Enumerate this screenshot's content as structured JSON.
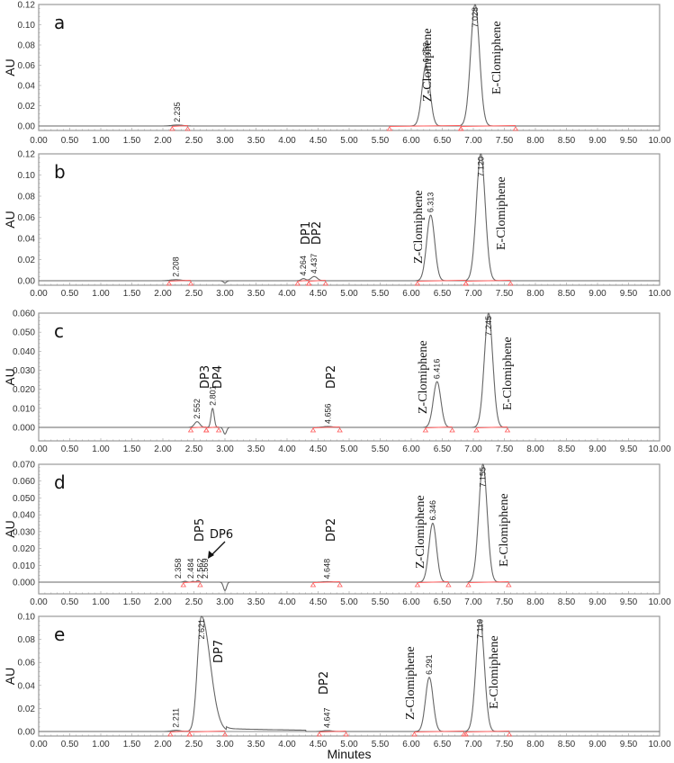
{
  "chart_data": [
    {
      "type": "line",
      "panel": "a",
      "title": "",
      "xlabel": "",
      "ylabel": "AU",
      "xlim": [
        0,
        10
      ],
      "ylim": [
        -0.003,
        0.12
      ],
      "x_ticks": [
        "0.00",
        "0.50",
        "1.00",
        "1.50",
        "2.00",
        "2.50",
        "3.00",
        "3.50",
        "4.00",
        "4.50",
        "5.00",
        "5.50",
        "6.00",
        "6.50",
        "7.00",
        "7.50",
        "8.00",
        "8.50",
        "9.00",
        "9.50",
        "10.00"
      ],
      "y_ticks": [
        "0.00",
        "0.02",
        "0.04",
        "0.06",
        "0.08",
        "0.10",
        "0.12"
      ],
      "peaks": [
        {
          "rt": "2.235",
          "x": 2.235,
          "height": 0.001,
          "width": 0.12
        },
        {
          "rt": "6.238",
          "x": 6.238,
          "height": 0.06,
          "width": 0.09,
          "label": "Z-Clomiphene"
        },
        {
          "rt": "7.028",
          "x": 7.028,
          "height": 0.12,
          "width": 0.1,
          "label": "E-Clomiphene"
        }
      ],
      "dips": [],
      "integration_bounds": [
        [
          2.15,
          2.4
        ],
        [
          5.65,
          6.8
        ],
        [
          6.8,
          7.68
        ]
      ]
    },
    {
      "type": "line",
      "panel": "b",
      "ylabel": "AU",
      "xlim": [
        0,
        10
      ],
      "ylim": [
        -0.003,
        0.12
      ],
      "x_ticks": [
        "0.00",
        "0.50",
        "1.00",
        "1.50",
        "2.00",
        "2.50",
        "3.00",
        "3.50",
        "4.00",
        "4.50",
        "5.00",
        "5.50",
        "6.00",
        "6.50",
        "7.00",
        "7.50",
        "8.00",
        "8.50",
        "9.00",
        "9.50",
        "10.00"
      ],
      "y_ticks": [
        "0.00",
        "0.02",
        "0.04",
        "0.06",
        "0.08",
        "0.10",
        "0.12"
      ],
      "peaks": [
        {
          "rt": "2.208",
          "x": 2.208,
          "height": 0.001,
          "width": 0.12
        },
        {
          "rt": "4.264",
          "x": 4.264,
          "height": 0.002,
          "width": 0.05,
          "label": "DP1"
        },
        {
          "rt": "4.437",
          "x": 4.437,
          "height": 0.004,
          "width": 0.07,
          "label": "DP2"
        },
        {
          "rt": "6.313",
          "x": 6.313,
          "height": 0.062,
          "width": 0.09,
          "label": "Z-Clomiphene"
        },
        {
          "rt": "7.120",
          "x": 7.12,
          "height": 0.12,
          "width": 0.1,
          "label": "E-Clomiphene"
        }
      ],
      "dips": [
        {
          "x": 3.0,
          "depth": 0.002
        }
      ],
      "integration_bounds": [
        [
          2.1,
          2.45
        ],
        [
          4.17,
          4.35
        ],
        [
          4.35,
          4.62
        ],
        [
          6.1,
          6.88
        ],
        [
          6.88,
          7.6
        ]
      ]
    },
    {
      "type": "line",
      "panel": "c",
      "ylabel": "AU",
      "xlim": [
        0,
        10
      ],
      "ylim": [
        -0.007,
        0.06
      ],
      "x_ticks": [
        "0.00",
        "0.50",
        "1.00",
        "1.50",
        "2.00",
        "2.50",
        "3.00",
        "3.50",
        "4.00",
        "4.50",
        "5.00",
        "5.50",
        "6.00",
        "6.50",
        "7.00",
        "7.50",
        "8.00",
        "8.50",
        "9.00",
        "9.50",
        "10.00"
      ],
      "y_ticks": [
        "0.000",
        "0.010",
        "0.020",
        "0.030",
        "0.040",
        "0.050",
        "0.060"
      ],
      "peaks": [
        {
          "rt": "2.552",
          "x": 2.552,
          "height": 0.003,
          "width": 0.06,
          "label": "DP3"
        },
        {
          "rt": "2.801",
          "x": 2.801,
          "height": 0.01,
          "width": 0.035,
          "label": "DP4"
        },
        {
          "rt": "4.656",
          "x": 4.656,
          "height": 0.0005,
          "width": 0.1,
          "label": "DP2"
        },
        {
          "rt": "6.416",
          "x": 6.416,
          "height": 0.024,
          "width": 0.085,
          "label": "Z-Clomiphene"
        },
        {
          "rt": "7.245",
          "x": 7.245,
          "height": 0.06,
          "width": 0.095,
          "label": "E-Clomiphene"
        }
      ],
      "dips": [
        {
          "x": 3.0,
          "depth": 0.0035
        }
      ],
      "integration_bounds": [
        [
          2.45,
          2.7
        ],
        [
          2.7,
          2.9
        ],
        [
          4.42,
          4.85
        ],
        [
          6.23,
          6.66
        ],
        [
          7.05,
          7.55
        ]
      ]
    },
    {
      "type": "line",
      "panel": "d",
      "ylabel": "AU",
      "xlim": [
        0,
        10
      ],
      "ylim": [
        -0.007,
        0.07
      ],
      "x_ticks": [
        "0.00",
        "0.50",
        "1.00",
        "1.50",
        "2.00",
        "2.50",
        "3.00",
        "3.50",
        "4.00",
        "4.50",
        "5.00",
        "5.50",
        "6.00",
        "6.50",
        "7.00",
        "7.50",
        "8.00",
        "8.50",
        "9.00",
        "9.50",
        "10.00"
      ],
      "y_ticks": [
        "0.000",
        "0.010",
        "0.020",
        "0.030",
        "0.040",
        "0.050",
        "0.060",
        "0.070"
      ],
      "peaks": [
        {
          "rt": "2.358",
          "x": 2.358,
          "height": 0.0005,
          "width": 0.04
        },
        {
          "rt": "2.484",
          "x": 2.484,
          "height": 0.0005,
          "width": 0.03,
          "label": "DP5"
        },
        {
          "rt": "2.562",
          "x": 2.562,
          "height": 0.0005,
          "width": 0.03
        },
        {
          "rt": "2.569",
          "x": 2.569,
          "height": 0.0005,
          "width": 0.03,
          "label": "DP6"
        },
        {
          "rt": "4.648",
          "x": 4.648,
          "height": 0.0003,
          "width": 0.1,
          "label": "DP2"
        },
        {
          "rt": "6.346",
          "x": 6.346,
          "height": 0.035,
          "width": 0.085,
          "label": "Z-Clomiphene"
        },
        {
          "rt": "7.155",
          "x": 7.155,
          "height": 0.07,
          "width": 0.095,
          "label": "E-Clomiphene"
        }
      ],
      "dips": [
        {
          "x": 3.0,
          "depth": 0.005
        }
      ],
      "integration_bounds": [
        [
          2.33,
          2.6
        ],
        [
          4.42,
          4.85
        ],
        [
          6.1,
          6.6
        ],
        [
          6.92,
          7.57
        ]
      ]
    },
    {
      "type": "line",
      "panel": "e",
      "xlabel": "Minutes",
      "ylabel": "AU",
      "xlim": [
        0,
        10
      ],
      "ylim": [
        -0.002,
        0.1
      ],
      "x_ticks": [
        "0.00",
        "0.50",
        "1.00",
        "1.50",
        "2.00",
        "2.50",
        "3.00",
        "3.50",
        "4.00",
        "4.50",
        "5.00",
        "5.50",
        "6.00",
        "6.50",
        "7.00",
        "7.50",
        "8.00",
        "8.50",
        "9.00",
        "9.50",
        "10.00"
      ],
      "y_ticks": [
        "0.00",
        "0.02",
        "0.04",
        "0.06",
        "0.08",
        "0.10"
      ],
      "peaks": [
        {
          "rt": "2.211",
          "x": 2.211,
          "height": 0.001,
          "width": 0.1
        },
        {
          "rt": "2.621",
          "x": 2.621,
          "height": 0.1,
          "width": 0.09,
          "label": "DP7",
          "clipped": true
        },
        {
          "rt": "4.647",
          "x": 4.647,
          "height": 0.0008,
          "width": 0.1,
          "label": "DP2"
        },
        {
          "rt": "6.291",
          "x": 6.291,
          "height": 0.047,
          "width": 0.085,
          "label": "Z-Clomiphene"
        },
        {
          "rt": "7.110",
          "x": 7.11,
          "height": 0.097,
          "width": 0.095,
          "label": "E-Clomiphene"
        }
      ],
      "dips": [],
      "integration_bounds": [
        [
          2.12,
          2.43
        ],
        [
          2.43,
          3.0
        ],
        [
          4.52,
          4.95
        ],
        [
          6.05,
          6.85
        ],
        [
          6.88,
          7.58
        ]
      ]
    }
  ],
  "labels": {
    "y_axis": "AU",
    "x_axis": "Minutes",
    "compound_z": "Z-Clomiphene",
    "compound_e": "E-Clomiphene",
    "panels": [
      "a",
      "b",
      "c",
      "d",
      "e"
    ],
    "panel_a": {
      "letter": "a",
      "rt_small": "2.235",
      "rt_z": "6.238",
      "rt_e": "7.028"
    },
    "panel_b": {
      "letter": "b",
      "rt_small": "2.208",
      "rt_dp1": "4.264",
      "rt_dp2": "4.437",
      "dp1": "DP1",
      "dp2": "DP2",
      "rt_z": "6.313",
      "rt_e": "7.120"
    },
    "panel_c": {
      "letter": "c",
      "rt_dp3": "2.552",
      "rt_dp4": "2.801",
      "dp3": "DP3",
      "dp4": "DP4",
      "rt_dp2": "4.656",
      "dp2": "DP2",
      "rt_z": "6.416",
      "rt_e": "7.245"
    },
    "panel_d": {
      "letter": "d",
      "rt_1": "2.358",
      "rt_2": "2.484",
      "rt_3": "2.562",
      "rt_4": "2.569",
      "dp5": "DP5",
      "dp6": "DP6",
      "rt_dp2": "4.648",
      "dp2": "DP2",
      "rt_z": "6.346",
      "rt_e": "7.155"
    },
    "panel_e": {
      "letter": "e",
      "rt_small": "2.211",
      "rt_dp7": "2.621",
      "dp7": "DP7",
      "rt_dp2": "4.647",
      "dp2": "DP2",
      "rt_z": "6.291",
      "rt_e": "7.110"
    }
  }
}
